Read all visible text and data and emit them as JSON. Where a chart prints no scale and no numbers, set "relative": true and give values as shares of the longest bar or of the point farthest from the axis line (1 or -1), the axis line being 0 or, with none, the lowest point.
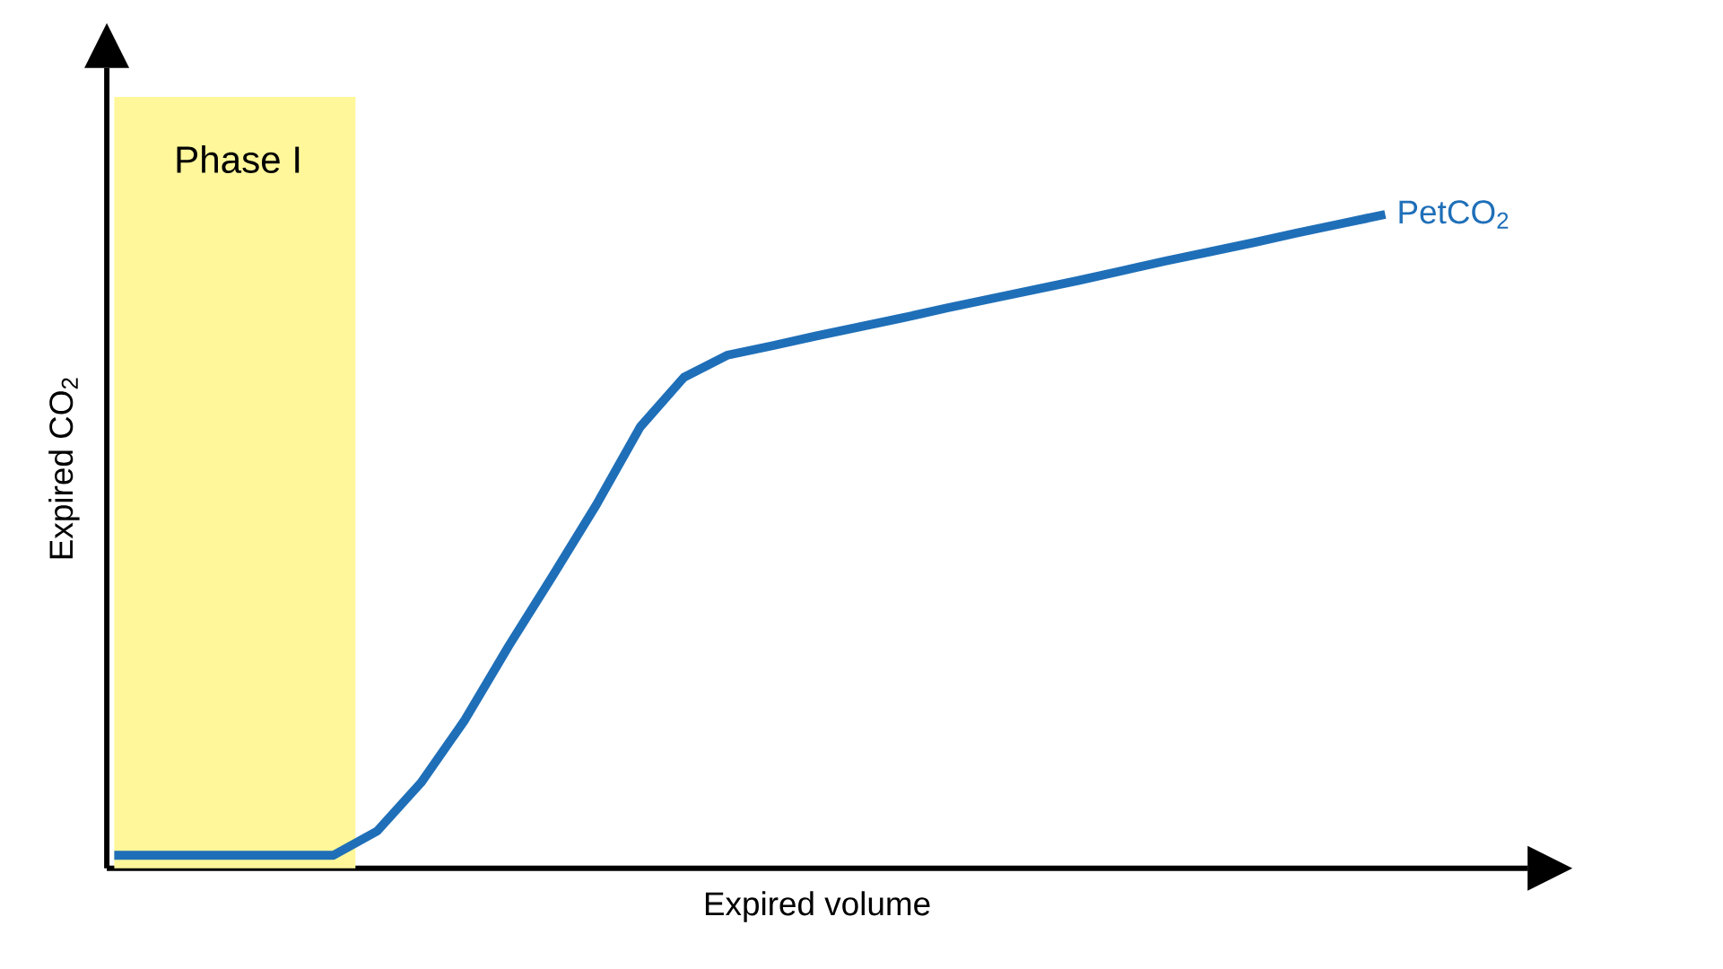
{
  "chart_data": {
    "type": "line",
    "relative": true,
    "xlabel": "Expired volume",
    "ylabel": "Expired CO$_{2}$",
    "categories": [
      null,
      null,
      null,
      null,
      null,
      null,
      null,
      null,
      null,
      null,
      null,
      null,
      null,
      null,
      null,
      null,
      null,
      null,
      null,
      null,
      null,
      null,
      null,
      null,
      null,
      null,
      null,
      null,
      null,
      null
    ],
    "tick_labels": false,
    "series": [
      {
        "name": "PetCO$_{2}$",
        "color": "#1f6fb8",
        "values": [
          0.02,
          0.02,
          0.02,
          0.02,
          0.02,
          0.02,
          0.057,
          0.131,
          0.227,
          0.34,
          0.447,
          0.556,
          0.675,
          0.751,
          0.785,
          0.799,
          0.814,
          0.828,
          0.842,
          0.857,
          0.871,
          0.885,
          0.899,
          0.914,
          0.929,
          0.943,
          0.957,
          0.972,
          0.986,
          1.0
        ]
      }
    ],
    "annotations": [
      "Phase I"
    ]
  }
}
